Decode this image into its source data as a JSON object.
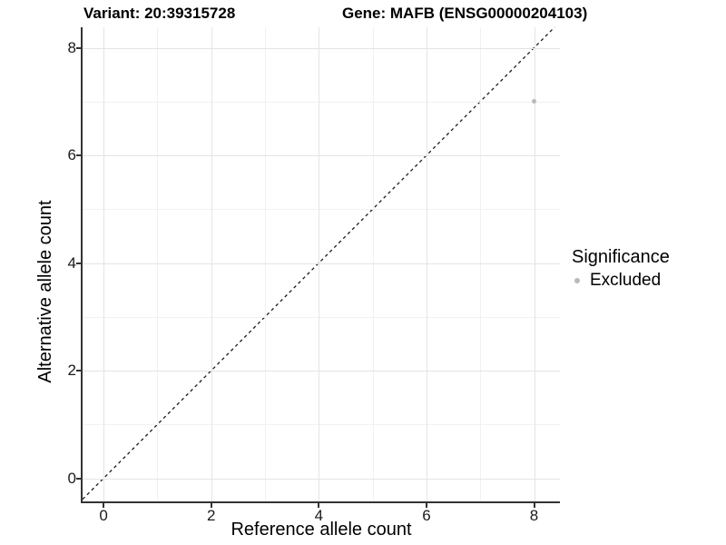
{
  "chart_data": {
    "type": "scatter",
    "title_left": "Variant: 20:39315728",
    "title_right": "Gene: MAFB (ENSG00000204103)",
    "xlabel": "Reference allele count",
    "ylabel": "Alternative allele count",
    "xlim": [
      -0.39,
      8.48
    ],
    "ylim": [
      -0.43,
      8.38
    ],
    "x_major_ticks": [
      0,
      2,
      4,
      6,
      8
    ],
    "x_minor_ticks": [
      1,
      3,
      5,
      7
    ],
    "y_major_ticks": [
      0,
      2,
      4,
      6,
      8
    ],
    "y_minor_ticks": [
      1,
      3,
      5,
      7
    ],
    "grid": true,
    "reference_line": {
      "type": "identity",
      "equation": "y = x",
      "style": "dashed",
      "color": "#1a1a1a"
    },
    "points": [
      {
        "x": 8,
        "y": 7,
        "series": "Excluded"
      }
    ],
    "legend": {
      "title": "Significance",
      "position": "right",
      "items": [
        {
          "label": "Excluded",
          "color": "#b9b9b9"
        }
      ]
    },
    "colors": {
      "point": "#b9b9b9",
      "grid_major": "#e4e4e4",
      "grid_minor": "#f1f1f1",
      "axis_line": "#333333"
    }
  }
}
